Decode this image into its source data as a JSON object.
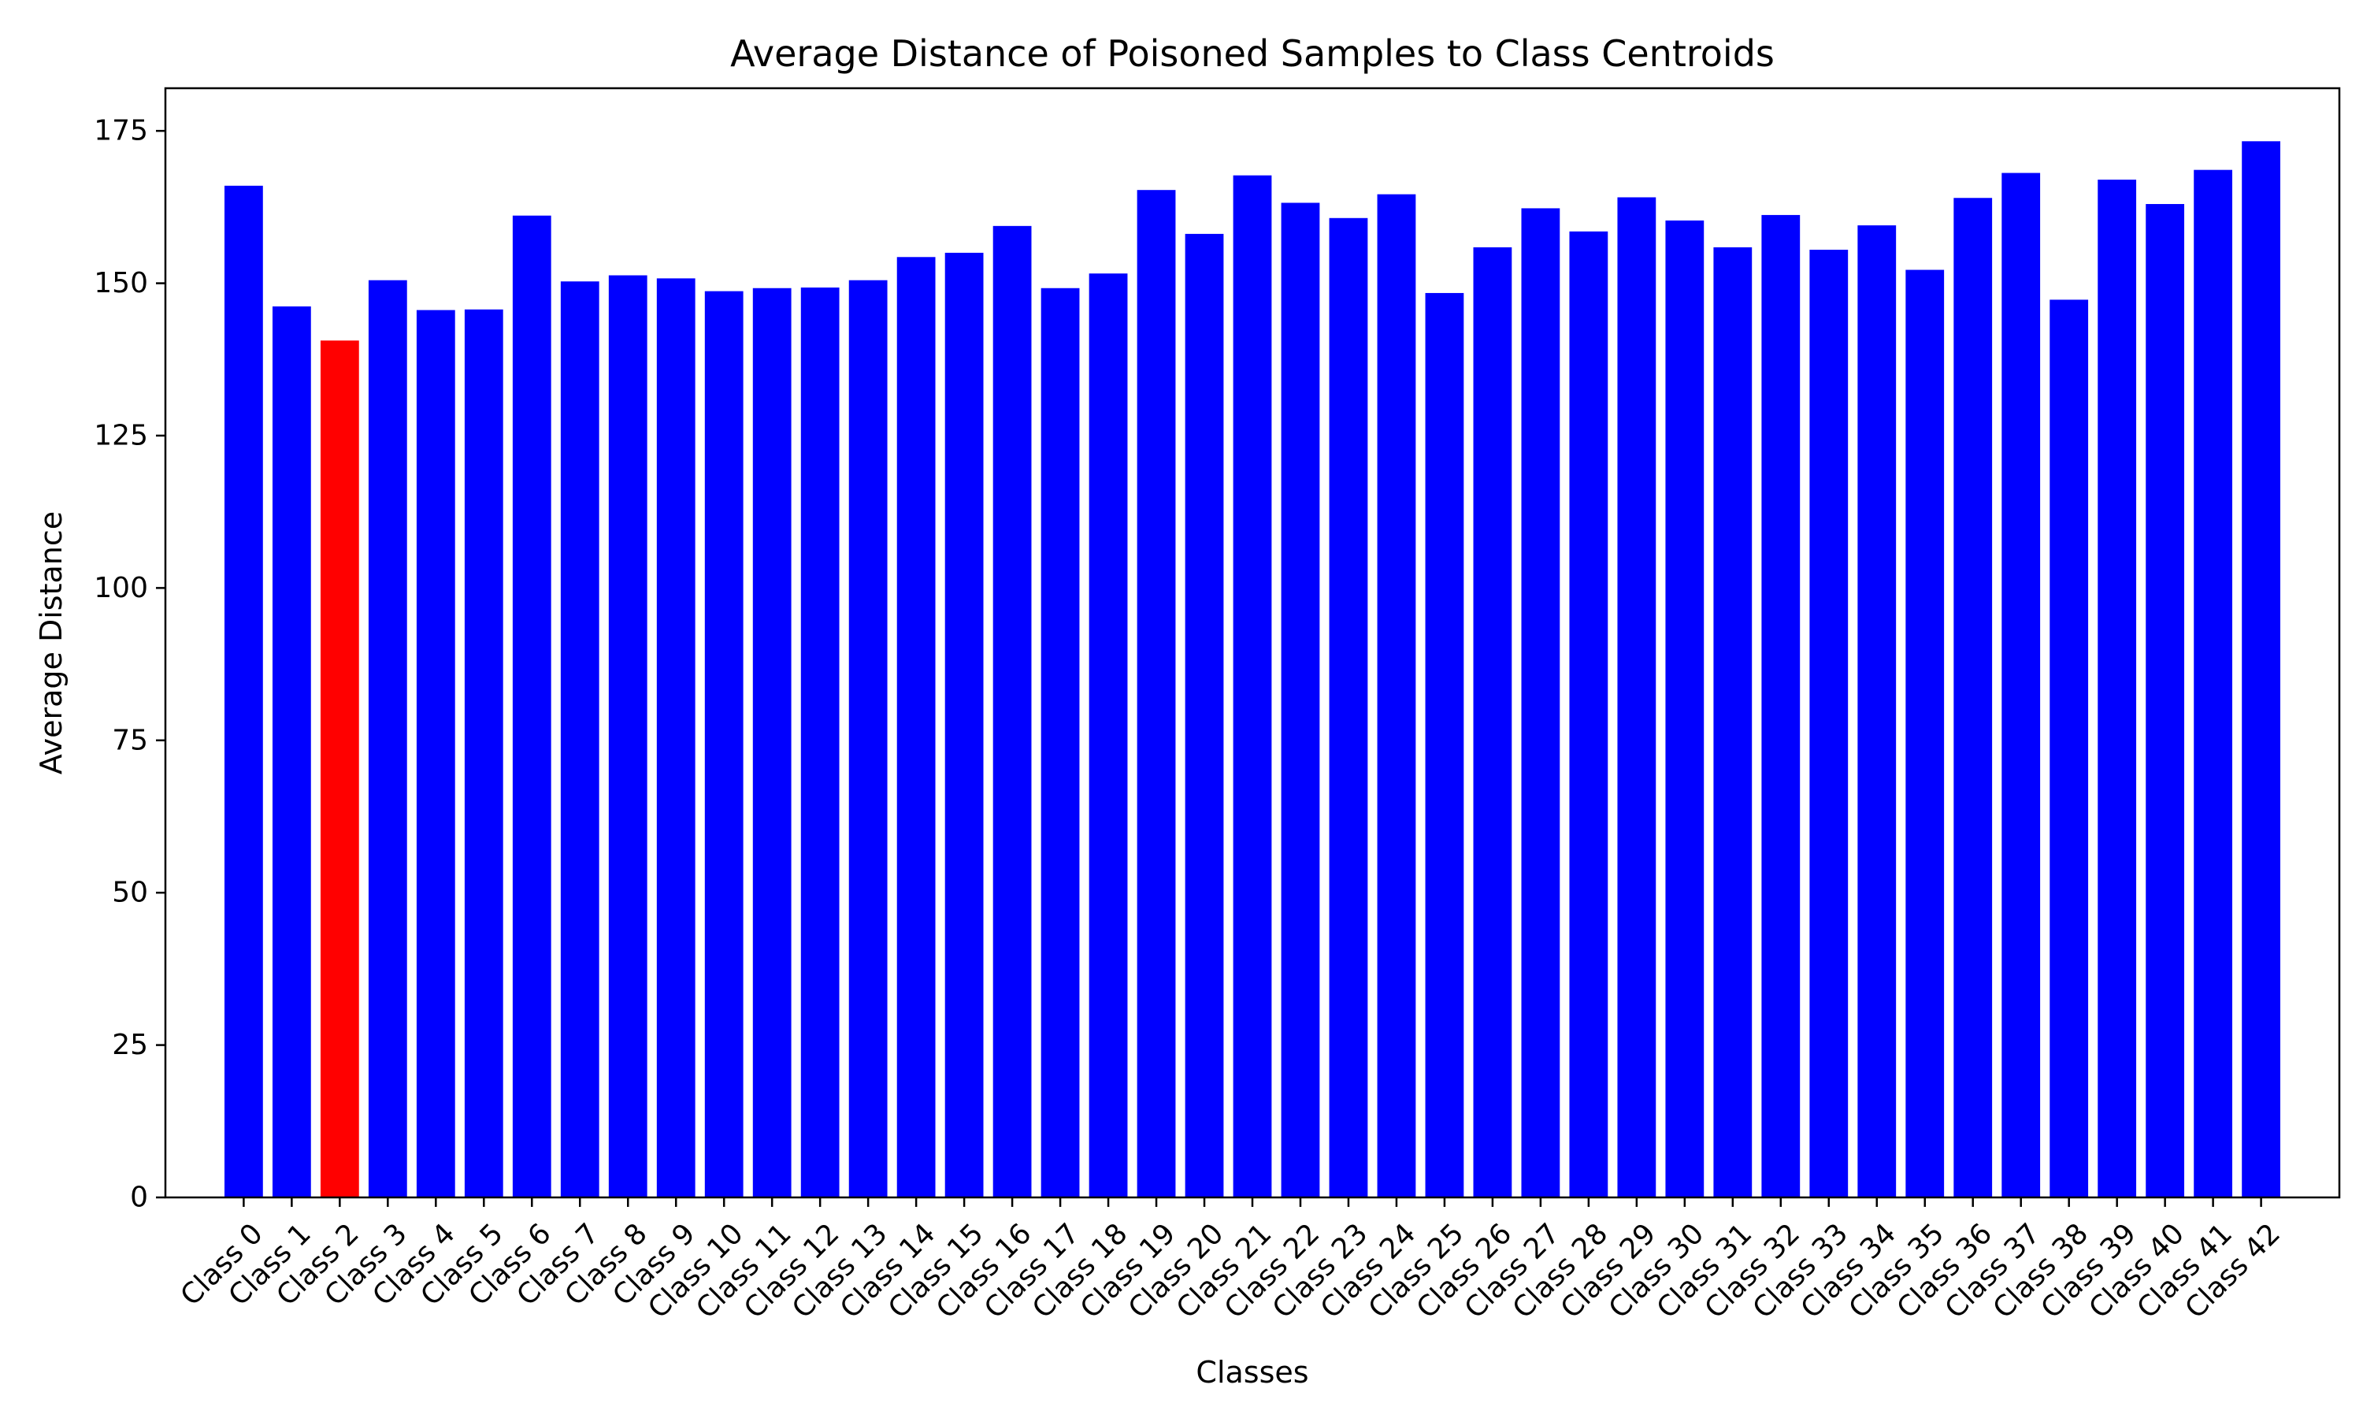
{
  "chart_data": {
    "type": "bar",
    "title": "Average Distance of Poisoned Samples to Class Centroids",
    "xlabel": "Classes",
    "ylabel": "Average Distance",
    "ylim": [
      0,
      182
    ],
    "yticks": [
      0,
      25,
      50,
      75,
      100,
      125,
      150,
      175
    ],
    "grid": false,
    "legend": "none",
    "categories": [
      "Class 0",
      "Class 1",
      "Class 2",
      "Class 3",
      "Class 4",
      "Class 5",
      "Class 6",
      "Class 7",
      "Class 8",
      "Class 9",
      "Class 10",
      "Class 11",
      "Class 12",
      "Class 13",
      "Class 14",
      "Class 15",
      "Class 16",
      "Class 17",
      "Class 18",
      "Class 19",
      "Class 20",
      "Class 21",
      "Class 22",
      "Class 23",
      "Class 24",
      "Class 25",
      "Class 26",
      "Class 27",
      "Class 28",
      "Class 29",
      "Class 30",
      "Class 31",
      "Class 32",
      "Class 33",
      "Class 34",
      "Class 35",
      "Class 36",
      "Class 37",
      "Class 38",
      "Class 39",
      "Class 40",
      "Class 41",
      "Class 42"
    ],
    "values": [
      166,
      146.2,
      140.6,
      150.5,
      145.6,
      145.7,
      161.1,
      150.3,
      151.3,
      150.8,
      148.7,
      149.2,
      149.3,
      150.5,
      154.3,
      155,
      159.4,
      149.2,
      151.6,
      165.3,
      158.1,
      167.7,
      163.2,
      160.7,
      164.6,
      148.4,
      155.9,
      162.3,
      158.5,
      164.1,
      160.3,
      155.9,
      161.2,
      155.5,
      159.5,
      152.2,
      164,
      168.1,
      147.3,
      167,
      163,
      168.6,
      173.3
    ],
    "colors": {
      "default": "#0000ff",
      "highlight": "#ff0000",
      "highlight_index": 2,
      "axis": "#000000",
      "background": "#ffffff"
    }
  }
}
